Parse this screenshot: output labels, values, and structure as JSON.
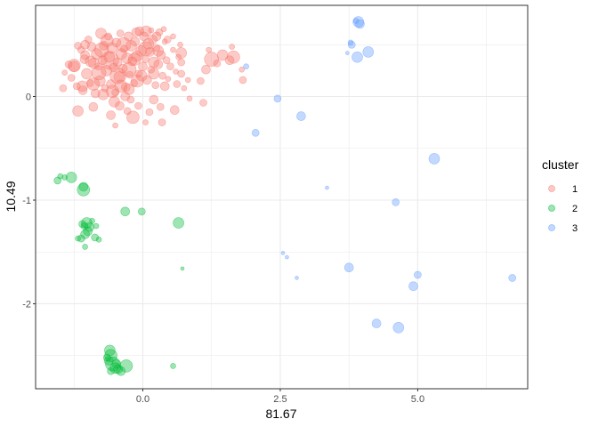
{
  "chart_data": {
    "type": "scatter",
    "title": "",
    "xlabel": "81.67",
    "ylabel": "10.49",
    "xlim": [
      -1.95,
      7.0
    ],
    "ylim": [
      -2.82,
      0.88
    ],
    "x_ticks": [
      0.0,
      2.5,
      5.0
    ],
    "x_tick_labels": [
      "0.0",
      "2.5",
      "5.0"
    ],
    "y_ticks": [
      0,
      -1,
      -2
    ],
    "y_tick_labels": [
      "0",
      "-1",
      "-2"
    ],
    "grid": true,
    "legend": {
      "title": "cluster",
      "position": "right",
      "entries": [
        "1",
        "2",
        "3"
      ]
    },
    "colors": {
      "1": "#F8766D",
      "2": "#00BA38",
      "3": "#619CFF"
    },
    "series": [
      {
        "name": "1",
        "points": [
          [
            -1.42,
            0.23,
            3
          ],
          [
            -1.35,
            0.31,
            4
          ],
          [
            -1.3,
            0.18,
            4
          ],
          [
            -1.25,
            0.29,
            6
          ],
          [
            -1.2,
            0.1,
            4
          ],
          [
            -1.18,
            0.49,
            4
          ],
          [
            -1.12,
            0.45,
            4
          ],
          [
            -1.09,
            0.06,
            5
          ],
          [
            -1.06,
            0.36,
            5
          ],
          [
            -1.02,
            0.22,
            6
          ],
          [
            -0.99,
            0.55,
            4
          ],
          [
            -0.96,
            0.13,
            4
          ],
          [
            -0.93,
            0.48,
            5
          ],
          [
            -0.89,
            0.32,
            6
          ],
          [
            -0.86,
            0.03,
            5
          ],
          [
            -0.84,
            0.41,
            6
          ],
          [
            -0.81,
            0.29,
            4
          ],
          [
            -0.78,
            0.15,
            6
          ],
          [
            -0.76,
            0.61,
            6
          ],
          [
            -0.73,
            0.35,
            5
          ],
          [
            -0.71,
            0.49,
            5
          ],
          [
            -0.69,
            0.08,
            4
          ],
          [
            -0.66,
            0.25,
            6
          ],
          [
            -0.63,
            0.58,
            4
          ],
          [
            -0.61,
            0.38,
            6
          ],
          [
            -0.58,
            0.12,
            5
          ],
          [
            -0.56,
            0.47,
            6
          ],
          [
            -0.53,
            0.28,
            5
          ],
          [
            -0.5,
            0.04,
            4
          ],
          [
            -0.48,
            0.52,
            5
          ],
          [
            -0.46,
            0.33,
            5
          ],
          [
            -0.43,
            0.19,
            6
          ],
          [
            -0.41,
            0.61,
            4
          ],
          [
            -0.39,
            0.41,
            6
          ],
          [
            -0.36,
            0.27,
            5
          ],
          [
            -0.34,
            0.46,
            4
          ],
          [
            -0.31,
            0.09,
            5
          ],
          [
            -0.29,
            0.37,
            6
          ],
          [
            -0.26,
            0.58,
            5
          ],
          [
            -0.24,
            0.21,
            4
          ],
          [
            -0.21,
            0.49,
            6
          ],
          [
            -0.19,
            0.34,
            5
          ],
          [
            -0.16,
            0.13,
            4
          ],
          [
            -0.14,
            0.53,
            5
          ],
          [
            -0.11,
            0.39,
            6
          ],
          [
            -0.08,
            0.22,
            4
          ],
          [
            -0.06,
            0.63,
            5
          ],
          [
            -0.03,
            0.44,
            6
          ],
          [
            0.0,
            0.29,
            5
          ],
          [
            0.02,
            0.58,
            5
          ],
          [
            0.05,
            0.36,
            4
          ],
          [
            0.08,
            0.16,
            5
          ],
          [
            0.1,
            0.51,
            6
          ],
          [
            0.13,
            0.43,
            5
          ],
          [
            0.15,
            0.26,
            4
          ],
          [
            0.18,
            0.55,
            5
          ],
          [
            0.2,
            0.33,
            6
          ],
          [
            0.23,
            0.11,
            4
          ],
          [
            0.25,
            0.47,
            4
          ],
          [
            0.28,
            0.31,
            5
          ],
          [
            0.3,
            0.62,
            4
          ],
          [
            0.33,
            0.4,
            5
          ],
          [
            0.36,
            0.2,
            4
          ],
          [
            0.4,
            0.53,
            3
          ],
          [
            0.43,
            0.35,
            4
          ],
          [
            0.46,
            0.17,
            3
          ],
          [
            0.5,
            0.29,
            4
          ],
          [
            0.55,
            0.45,
            3
          ],
          [
            0.6,
            0.24,
            3
          ],
          [
            0.65,
            0.38,
            3
          ],
          [
            0.7,
            0.33,
            4
          ],
          [
            0.75,
            0.08,
            3
          ],
          [
            0.82,
            0.16,
            3
          ],
          [
            -0.8,
            0.23,
            8
          ],
          [
            -0.6,
            0.35,
            10
          ],
          [
            -0.45,
            0.2,
            9
          ],
          [
            -0.25,
            0.26,
            8
          ],
          [
            -1.25,
            0.3,
            7
          ],
          [
            -0.9,
            0.12,
            7
          ],
          [
            -0.75,
            0.45,
            8
          ],
          [
            -0.55,
            0.05,
            7
          ],
          [
            -0.35,
            0.5,
            8
          ],
          [
            -0.15,
            0.36,
            7
          ],
          [
            0.05,
            0.46,
            8
          ],
          [
            -0.65,
            0.54,
            7
          ],
          [
            -0.1,
            0.15,
            7
          ],
          [
            -1.1,
            0.1,
            6
          ],
          [
            -0.72,
            0.02,
            6
          ],
          [
            -0.52,
            -0.05,
            6
          ],
          [
            -0.32,
            0.0,
            5
          ],
          [
            -0.28,
            -0.14,
            4
          ],
          [
            -0.42,
            -0.09,
            5
          ],
          [
            -0.22,
            -0.03,
            4
          ],
          [
            -0.18,
            -0.2,
            7
          ],
          [
            -0.08,
            -0.09,
            4
          ],
          [
            0.12,
            -0.15,
            4
          ],
          [
            0.2,
            -0.03,
            5
          ],
          [
            0.32,
            -0.1,
            4
          ],
          [
            0.35,
            -0.25,
            4
          ],
          [
            0.58,
            -0.13,
            5
          ],
          [
            0.85,
            -0.02,
            3
          ],
          [
            1.1,
            -0.06,
            4
          ],
          [
            -1.05,
            0.4,
            5
          ],
          [
            -0.95,
            0.34,
            6
          ],
          [
            -0.02,
            0.2,
            6
          ],
          [
            0.28,
            0.44,
            6
          ],
          [
            0.4,
            0.1,
            5
          ],
          [
            0.06,
            0.63,
            6
          ],
          [
            -0.12,
            0.62,
            5
          ],
          [
            0.45,
            0.55,
            4
          ],
          [
            0.55,
            0.58,
            3
          ],
          [
            0.68,
            0.5,
            3
          ],
          [
            0.38,
            0.65,
            3
          ],
          [
            -1.45,
            0.08,
            4
          ],
          [
            -1.18,
            -0.14,
            6
          ],
          [
            -0.9,
            -0.1,
            5
          ],
          [
            -0.58,
            -0.18,
            5
          ],
          [
            -0.5,
            -0.28,
            3
          ],
          [
            0.05,
            -0.25,
            3
          ],
          [
            1.05,
            0.15,
            4
          ],
          [
            1.15,
            0.26,
            5
          ],
          [
            1.2,
            0.45,
            3
          ],
          [
            1.25,
            0.36,
            8
          ],
          [
            1.35,
            0.32,
            4
          ],
          [
            1.45,
            0.4,
            6
          ],
          [
            1.58,
            0.35,
            5
          ],
          [
            1.65,
            0.38,
            7
          ],
          [
            1.62,
            0.48,
            3
          ],
          [
            1.8,
            0.26,
            3
          ],
          [
            1.82,
            0.16,
            4
          ],
          [
            -1.05,
            0.5,
            5
          ],
          [
            0.15,
            0.64,
            3
          ],
          [
            0.7,
            0.22,
            4
          ],
          [
            0.7,
            0.42,
            6
          ],
          [
            -0.4,
            0.1,
            7
          ],
          [
            -0.25,
            0.07,
            6
          ],
          [
            0.2,
            0.22,
            6
          ],
          [
            0.25,
            0.58,
            5
          ],
          [
            0.62,
            0.12,
            4
          ]
        ]
      },
      {
        "name": "2",
        "points": [
          [
            -1.55,
            -0.81,
            4
          ],
          [
            -1.5,
            -0.77,
            3
          ],
          [
            -1.42,
            -0.78,
            3
          ],
          [
            -1.3,
            -0.78,
            6
          ],
          [
            -1.08,
            -0.9,
            7
          ],
          [
            -1.08,
            -0.87,
            5
          ],
          [
            -1.18,
            -1.37,
            3
          ],
          [
            -1.12,
            -1.37,
            4
          ],
          [
            -1.05,
            -1.33,
            5
          ],
          [
            -1.0,
            -1.3,
            5
          ],
          [
            -1.06,
            -1.25,
            4
          ],
          [
            -0.97,
            -1.26,
            5
          ],
          [
            -0.92,
            -1.2,
            3
          ],
          [
            -1.02,
            -1.22,
            6
          ],
          [
            -1.05,
            -1.45,
            3
          ],
          [
            -0.87,
            -1.36,
            4
          ],
          [
            -0.85,
            -1.25,
            3
          ],
          [
            -0.8,
            -1.38,
            3
          ],
          [
            -1.1,
            -1.23,
            4
          ],
          [
            -0.32,
            -1.11,
            5
          ],
          [
            -0.02,
            -1.11,
            4
          ],
          [
            0.65,
            -1.22,
            6
          ],
          [
            0.72,
            -1.66,
            2
          ],
          [
            -0.6,
            -2.45,
            6
          ],
          [
            -0.58,
            -2.5,
            7
          ],
          [
            -0.62,
            -2.55,
            5
          ],
          [
            -0.55,
            -2.58,
            8
          ],
          [
            -0.5,
            -2.62,
            6
          ],
          [
            -0.45,
            -2.63,
            5
          ],
          [
            -0.4,
            -2.65,
            5
          ],
          [
            -0.3,
            -2.6,
            7
          ],
          [
            -0.58,
            -2.65,
            4
          ],
          [
            -0.48,
            -2.58,
            5
          ],
          [
            -0.65,
            -2.52,
            4
          ],
          [
            0.55,
            -2.6,
            3
          ]
        ]
      },
      {
        "name": "3",
        "points": [
          [
            3.92,
            0.72,
            6
          ],
          [
            3.95,
            0.7,
            5
          ],
          [
            3.88,
            0.73,
            3
          ],
          [
            3.8,
            0.5,
            4
          ],
          [
            3.72,
            0.42,
            2
          ],
          [
            3.9,
            0.38,
            6
          ],
          [
            4.1,
            0.43,
            6
          ],
          [
            3.78,
            0.52,
            3
          ],
          [
            1.88,
            0.29,
            3
          ],
          [
            2.45,
            -0.02,
            4
          ],
          [
            2.88,
            -0.19,
            5
          ],
          [
            2.05,
            -0.35,
            4
          ],
          [
            5.3,
            -0.6,
            6
          ],
          [
            3.35,
            -0.88,
            2
          ],
          [
            4.6,
            -1.02,
            4
          ],
          [
            2.55,
            -1.51,
            2
          ],
          [
            2.62,
            -1.55,
            2
          ],
          [
            2.8,
            -1.75,
            2
          ],
          [
            3.75,
            -1.65,
            5
          ],
          [
            4.25,
            -2.19,
            5
          ],
          [
            4.65,
            -2.23,
            6
          ],
          [
            4.92,
            -1.83,
            5
          ],
          [
            5.0,
            -1.72,
            4
          ],
          [
            6.72,
            -1.75,
            4
          ]
        ]
      }
    ]
  }
}
